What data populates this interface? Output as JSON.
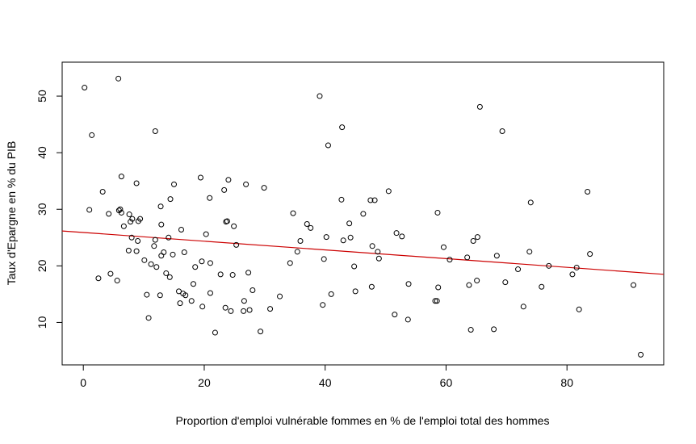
{
  "chart_data": {
    "type": "scatter",
    "xlabel": "Proportion d'emploi vulnérable fommes en % de l'emploi total des hommes",
    "ylabel": "Taux d'Epargne en % du PIB",
    "xlim": [
      -3.5,
      96
    ],
    "ylim": [
      2.5,
      56
    ],
    "x_ticks": [
      0,
      20,
      40,
      60,
      80
    ],
    "y_ticks": [
      10,
      20,
      30,
      40,
      50
    ],
    "x_tick_labels": [
      "0",
      "20",
      "40",
      "60",
      "80"
    ],
    "y_tick_labels": [
      "10",
      "20",
      "30",
      "40",
      "50"
    ],
    "grid": false,
    "legend": "none",
    "point_color": "#000000",
    "regression_line": {
      "color": "#cc0000",
      "intercept": 25.9,
      "slope": -0.077
    },
    "points": [
      [
        0.2,
        51.5
      ],
      [
        1.0,
        29.9
      ],
      [
        1.4,
        43.1
      ],
      [
        2.5,
        17.8
      ],
      [
        3.2,
        33.1
      ],
      [
        4.2,
        29.2
      ],
      [
        4.5,
        18.6
      ],
      [
        5.6,
        17.4
      ],
      [
        5.8,
        53.1
      ],
      [
        5.9,
        29.8
      ],
      [
        6.1,
        30.0
      ],
      [
        6.3,
        35.8
      ],
      [
        6.3,
        29.4
      ],
      [
        6.7,
        27.0
      ],
      [
        7.5,
        22.7
      ],
      [
        7.6,
        29.1
      ],
      [
        7.8,
        27.8
      ],
      [
        8.0,
        25.0
      ],
      [
        8.1,
        28.3
      ],
      [
        8.8,
        34.6
      ],
      [
        8.8,
        22.6
      ],
      [
        9.0,
        24.4
      ],
      [
        9.1,
        27.9
      ],
      [
        9.4,
        28.3
      ],
      [
        10.1,
        21.0
      ],
      [
        10.5,
        14.9
      ],
      [
        10.8,
        10.8
      ],
      [
        11.2,
        20.3
      ],
      [
        11.7,
        23.5
      ],
      [
        11.9,
        43.8
      ],
      [
        11.9,
        24.6
      ],
      [
        12.1,
        19.8
      ],
      [
        12.7,
        14.8
      ],
      [
        12.8,
        30.5
      ],
      [
        12.9,
        27.3
      ],
      [
        12.9,
        21.8
      ],
      [
        13.3,
        22.4
      ],
      [
        13.7,
        18.7
      ],
      [
        14.1,
        25.0
      ],
      [
        14.3,
        18.0
      ],
      [
        14.4,
        31.8
      ],
      [
        14.8,
        22.0
      ],
      [
        15.0,
        34.4
      ],
      [
        15.8,
        15.5
      ],
      [
        16.0,
        13.4
      ],
      [
        16.2,
        26.4
      ],
      [
        16.5,
        15.1
      ],
      [
        16.7,
        22.4
      ],
      [
        16.9,
        14.8
      ],
      [
        17.9,
        13.8
      ],
      [
        18.2,
        16.8
      ],
      [
        18.5,
        19.8
      ],
      [
        19.4,
        35.6
      ],
      [
        19.6,
        20.8
      ],
      [
        19.7,
        12.8
      ],
      [
        20.3,
        25.6
      ],
      [
        20.9,
        32.0
      ],
      [
        21.0,
        20.5
      ],
      [
        21.0,
        15.2
      ],
      [
        21.8,
        8.2
      ],
      [
        22.7,
        18.5
      ],
      [
        23.3,
        33.4
      ],
      [
        23.5,
        12.6
      ],
      [
        23.6,
        27.8
      ],
      [
        23.8,
        27.9
      ],
      [
        24.0,
        35.2
      ],
      [
        24.4,
        12.0
      ],
      [
        24.7,
        18.4
      ],
      [
        24.9,
        27.0
      ],
      [
        25.3,
        23.7
      ],
      [
        26.5,
        12.0
      ],
      [
        26.6,
        13.8
      ],
      [
        26.9,
        34.4
      ],
      [
        27.3,
        18.8
      ],
      [
        27.5,
        12.2
      ],
      [
        28.0,
        15.7
      ],
      [
        29.3,
        8.4
      ],
      [
        29.9,
        33.8
      ],
      [
        30.9,
        12.4
      ],
      [
        32.5,
        14.6
      ],
      [
        34.2,
        20.5
      ],
      [
        34.7,
        29.3
      ],
      [
        35.4,
        22.5
      ],
      [
        35.9,
        24.4
      ],
      [
        37.0,
        27.4
      ],
      [
        37.6,
        26.7
      ],
      [
        39.1,
        50.0
      ],
      [
        39.6,
        13.1
      ],
      [
        39.8,
        21.2
      ],
      [
        40.2,
        25.1
      ],
      [
        40.5,
        41.3
      ],
      [
        41.0,
        15.0
      ],
      [
        42.7,
        31.7
      ],
      [
        42.8,
        44.5
      ],
      [
        43.0,
        24.5
      ],
      [
        44.0,
        27.5
      ],
      [
        44.2,
        25.0
      ],
      [
        44.8,
        19.9
      ],
      [
        45.0,
        15.5
      ],
      [
        46.3,
        29.2
      ],
      [
        47.5,
        31.6
      ],
      [
        47.7,
        16.3
      ],
      [
        47.8,
        23.5
      ],
      [
        48.2,
        31.6
      ],
      [
        48.7,
        22.5
      ],
      [
        48.9,
        21.3
      ],
      [
        50.5,
        33.2
      ],
      [
        51.5,
        11.4
      ],
      [
        51.8,
        25.8
      ],
      [
        52.7,
        25.2
      ],
      [
        53.7,
        10.5
      ],
      [
        53.8,
        16.8
      ],
      [
        58.2,
        13.8
      ],
      [
        58.5,
        13.8
      ],
      [
        58.6,
        29.4
      ],
      [
        58.7,
        16.2
      ],
      [
        59.6,
        23.3
      ],
      [
        60.6,
        21.1
      ],
      [
        63.5,
        21.5
      ],
      [
        63.8,
        16.6
      ],
      [
        64.1,
        8.7
      ],
      [
        64.5,
        24.4
      ],
      [
        65.1,
        17.4
      ],
      [
        65.2,
        25.1
      ],
      [
        65.6,
        48.1
      ],
      [
        67.9,
        8.8
      ],
      [
        68.4,
        21.8
      ],
      [
        69.3,
        43.8
      ],
      [
        69.8,
        17.1
      ],
      [
        71.9,
        19.4
      ],
      [
        72.8,
        12.8
      ],
      [
        73.8,
        22.5
      ],
      [
        74.0,
        31.2
      ],
      [
        75.8,
        16.3
      ],
      [
        77.0,
        20.0
      ],
      [
        80.9,
        18.5
      ],
      [
        81.6,
        19.7
      ],
      [
        82.0,
        12.3
      ],
      [
        83.4,
        33.1
      ],
      [
        83.8,
        22.1
      ],
      [
        91.0,
        16.6
      ],
      [
        92.2,
        4.3
      ]
    ]
  }
}
